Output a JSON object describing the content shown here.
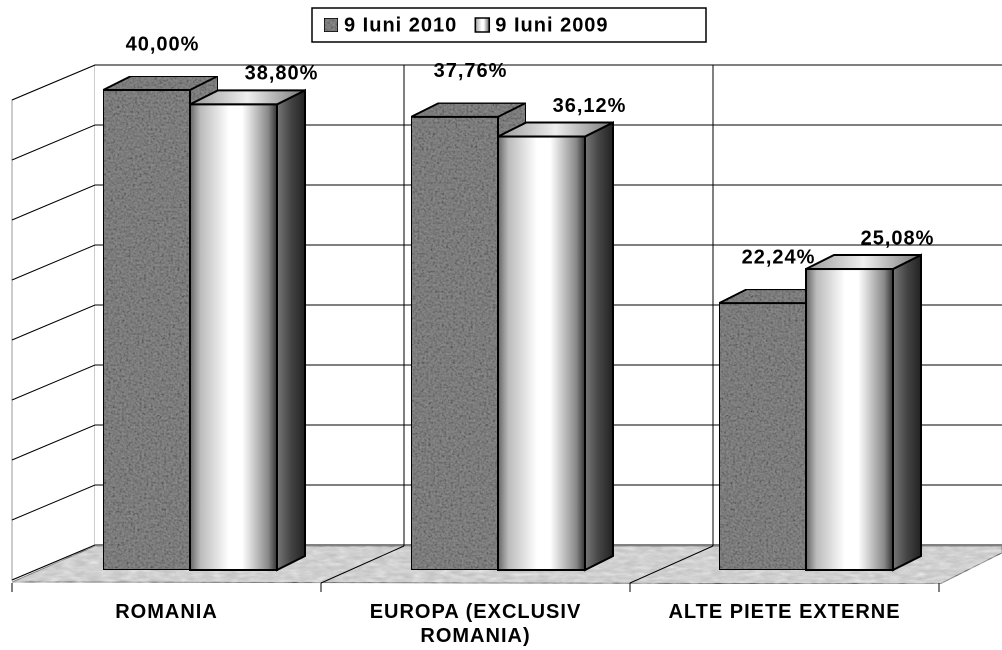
{
  "chart_data": {
    "type": "bar3d",
    "categories": [
      "ROMANIA",
      "EUROPA (EXCLUSIV ROMANIA)",
      "ALTE PIETE EXTERNE"
    ],
    "series": [
      {
        "name": "9 Iuni 2010",
        "color": "#8c8c8c",
        "values": [
          40.0,
          37.76,
          22.24
        ],
        "value_labels": [
          "40,00%",
          "37,76%",
          "22,24%"
        ]
      },
      {
        "name": "9 Iuni 2009",
        "color": "#ffffff",
        "values": [
          38.8,
          36.12,
          25.08
        ],
        "value_labels": [
          "38,80%",
          "36,12%",
          "25,08%"
        ]
      }
    ],
    "ylim": [
      0,
      40
    ],
    "yticks": [
      0,
      5,
      10,
      15,
      20,
      25,
      30,
      35,
      40
    ],
    "grid": true,
    "legend": "top"
  }
}
